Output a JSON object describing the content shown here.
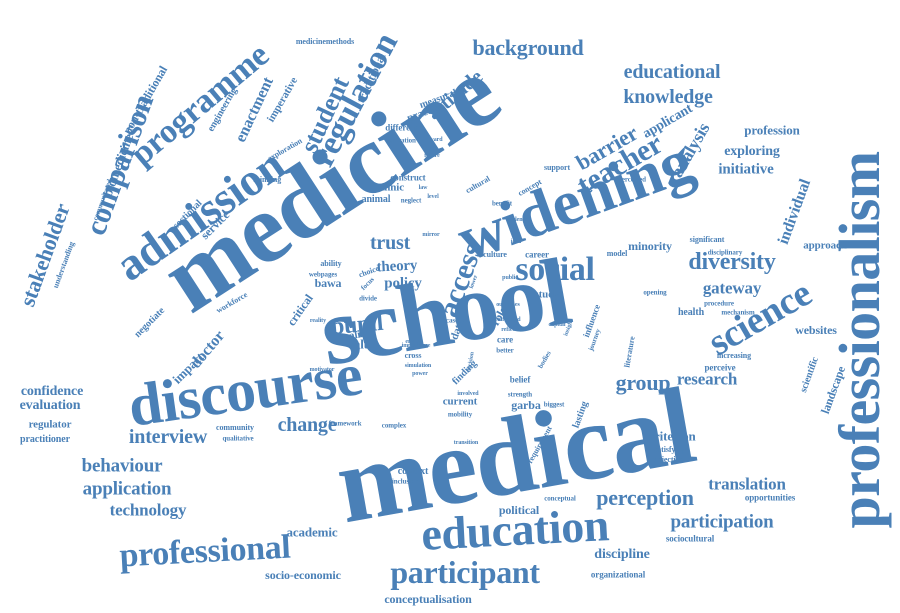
{
  "cloud": {
    "color": "#4a80b7",
    "words": [
      "medicine",
      "school",
      "medical",
      "professionalism",
      "widening",
      "discourse",
      "education",
      "admission",
      "programme",
      "comparison",
      "science",
      "social",
      "professional",
      "participant",
      "regulation",
      "student",
      "teacher",
      "diversity",
      "background",
      "stakeholder",
      "educational",
      "knowledge",
      "interview",
      "behaviour",
      "application",
      "group",
      "pupil",
      "perception",
      "participation",
      "trust",
      "barrier",
      "analysis",
      "technology",
      "translation",
      "change",
      "access",
      "research",
      "gateway",
      "individual",
      "confidence",
      "evaluation",
      "attitude",
      "initiative",
      "exploring",
      "profession",
      "applicant",
      "theory",
      "policy",
      "value",
      "doctor",
      "enactment",
      "biomedicine",
      "non-traditional",
      "traditional",
      "websites",
      "criterion",
      "academic",
      "discipline",
      "political",
      "conceptualisation",
      "socio-economic",
      "minority",
      "health",
      "critical",
      "impact",
      "landscape",
      "scientific",
      "approach",
      "service",
      "sectional",
      "regulator",
      "practitioner",
      "bawa",
      "garba",
      "current",
      "finding",
      "data",
      "role",
      "study",
      "context",
      "ethnic",
      "animal",
      "construct",
      "difference",
      "aspiration",
      "practice",
      "measurable",
      "imperative",
      "engineering",
      "medicinemethods",
      "exploration",
      "thinking",
      "communicated",
      "understanding",
      "community",
      "framework",
      "negotiate",
      "workforce",
      "realist",
      "ability",
      "choice",
      "career",
      "culture",
      "model",
      "significant",
      "increasing",
      "perceive",
      "opportunities",
      "sociocultural",
      "organizational",
      "satisfying",
      "objective",
      "lasting",
      "inclusion",
      "requirement",
      "mobility",
      "conceptual",
      "perceived",
      "support",
      "benefit",
      "concept",
      "cultural",
      "opening",
      "mechanism",
      "disciplinary",
      "procedure",
      "literature",
      "belief",
      "journey",
      "bodies",
      "strength",
      "qualitative",
      "complex",
      "transition",
      "motivator",
      "insight",
      "focus",
      "webpages",
      "reality",
      "divide",
      "neglect",
      "case",
      "care",
      "better",
      "involved",
      "biggest",
      "level",
      "cross",
      "influence",
      "capital",
      "outcomes",
      "simulation",
      "reflection",
      "importance",
      "informed",
      "power",
      "decision",
      "mirror",
      "evidence",
      "idea",
      "engage",
      "future",
      "public",
      "lower",
      "ward",
      "law"
    ]
  }
}
